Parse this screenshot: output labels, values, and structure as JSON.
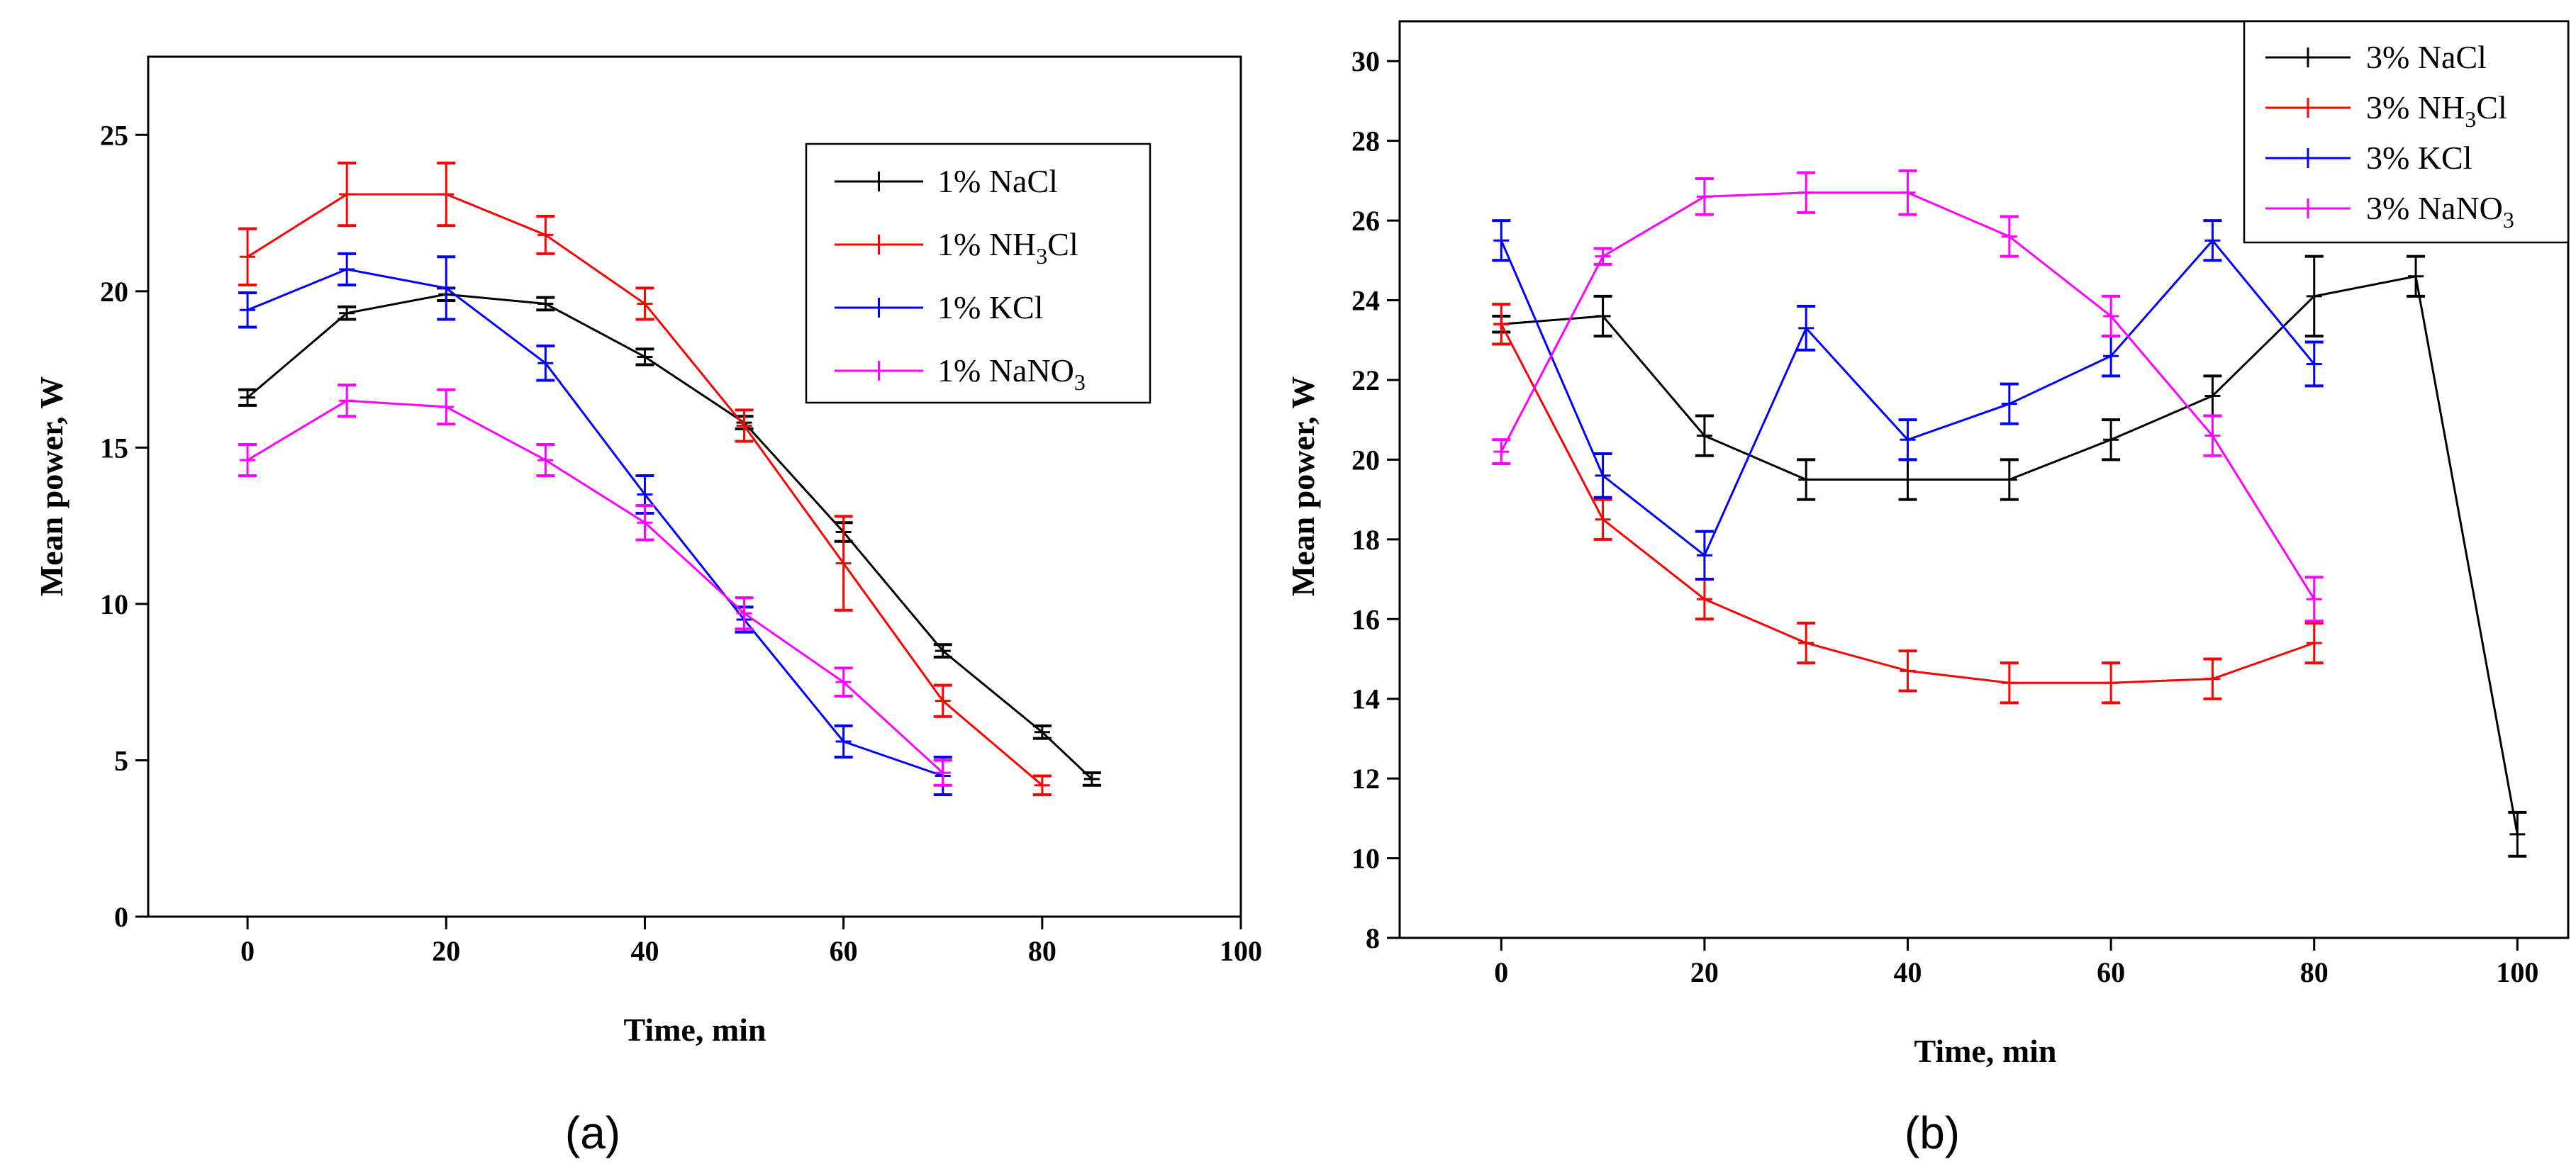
{
  "chart_data": [
    {
      "type": "line",
      "panel_label": "(a)",
      "xlabel": "Time, min",
      "ylabel": "Mean power, W",
      "xlim": [
        -10,
        100
      ],
      "ylim": [
        0,
        27.5
      ],
      "xticks": [
        0,
        20,
        40,
        60,
        80,
        100
      ],
      "yticks": [
        0,
        5,
        10,
        15,
        20,
        25
      ],
      "legend_position": "top-right",
      "series": [
        {
          "name": "1% NaCl",
          "label_main": "1% NaCl",
          "label_sub": "",
          "label_tail": "",
          "color": "#000000",
          "x": [
            0,
            10,
            20,
            30,
            40,
            50,
            60,
            70,
            80,
            85
          ],
          "y": [
            16.6,
            19.3,
            19.9,
            19.6,
            17.9,
            15.8,
            12.3,
            8.5,
            5.9,
            4.4
          ],
          "err": [
            0.25,
            0.2,
            0.2,
            0.2,
            0.25,
            0.2,
            0.3,
            0.2,
            0.2,
            0.2
          ]
        },
        {
          "name": "1% NH3Cl",
          "label_main": "1% NH",
          "label_sub": "3",
          "label_tail": "Cl",
          "color": "#ff0000",
          "x": [
            0,
            10,
            20,
            30,
            40,
            50,
            60,
            70,
            80
          ],
          "y": [
            21.1,
            23.1,
            23.1,
            21.8,
            19.6,
            15.7,
            11.3,
            6.9,
            4.2
          ],
          "err": [
            0.9,
            1.0,
            1.0,
            0.6,
            0.5,
            0.5,
            1.5,
            0.5,
            0.3
          ]
        },
        {
          "name": "1% KCl",
          "label_main": "1% KCl",
          "label_sub": "",
          "label_tail": "",
          "color": "#0000ff",
          "x": [
            0,
            10,
            20,
            30,
            40,
            50,
            60,
            70
          ],
          "y": [
            19.4,
            20.7,
            20.1,
            17.7,
            13.5,
            9.5,
            5.6,
            4.5
          ],
          "err": [
            0.55,
            0.5,
            1.0,
            0.55,
            0.6,
            0.4,
            0.5,
            0.6
          ]
        },
        {
          "name": "1% NaNO3",
          "label_main": "1% NaNO",
          "label_sub": "3",
          "label_tail": "",
          "color": "#ff00ff",
          "x": [
            0,
            10,
            20,
            30,
            40,
            50,
            60,
            70
          ],
          "y": [
            14.6,
            16.5,
            16.3,
            14.6,
            12.6,
            9.7,
            7.5,
            4.6
          ],
          "err": [
            0.5,
            0.5,
            0.55,
            0.5,
            0.55,
            0.5,
            0.45,
            0.4
          ]
        }
      ]
    },
    {
      "type": "line",
      "panel_label": "(b)",
      "xlabel": "Time, min",
      "ylabel": "Mean power, W",
      "xlim": [
        -10,
        105
      ],
      "ylim": [
        8,
        31
      ],
      "xticks": [
        0,
        20,
        40,
        60,
        80,
        100
      ],
      "yticks": [
        8,
        10,
        12,
        14,
        16,
        18,
        20,
        22,
        24,
        26,
        28,
        30
      ],
      "legend_position": "top-right",
      "series": [
        {
          "name": "3% NaCl",
          "label_main": "3% NaCl",
          "label_sub": "",
          "label_tail": "",
          "color": "#000000",
          "x": [
            0,
            10,
            20,
            30,
            40,
            50,
            60,
            70,
            80,
            90,
            100
          ],
          "y": [
            23.4,
            23.6,
            20.6,
            19.5,
            19.5,
            19.5,
            20.5,
            21.6,
            24.1,
            24.6,
            10.6
          ],
          "err": [
            0.2,
            0.5,
            0.5,
            0.5,
            0.5,
            0.5,
            0.5,
            0.5,
            1.0,
            0.5,
            0.55
          ]
        },
        {
          "name": "3% NH3Cl",
          "label_main": "3% NH",
          "label_sub": "3",
          "label_tail": "Cl",
          "color": "#ff0000",
          "x": [
            0,
            10,
            20,
            30,
            40,
            50,
            60,
            70,
            80
          ],
          "y": [
            23.4,
            18.5,
            16.5,
            15.4,
            14.7,
            14.4,
            14.4,
            14.5,
            15.4
          ],
          "err": [
            0.5,
            0.5,
            0.5,
            0.5,
            0.5,
            0.5,
            0.5,
            0.5,
            0.5
          ]
        },
        {
          "name": "3% KCl",
          "label_main": "3% KCl",
          "label_sub": "",
          "label_tail": "",
          "color": "#0000ff",
          "x": [
            0,
            10,
            20,
            30,
            40,
            50,
            60,
            70,
            80
          ],
          "y": [
            25.5,
            19.6,
            17.6,
            23.3,
            20.5,
            21.4,
            22.6,
            25.5,
            22.4
          ],
          "err": [
            0.5,
            0.55,
            0.6,
            0.55,
            0.5,
            0.5,
            0.5,
            0.5,
            0.55
          ]
        },
        {
          "name": "3% NaNO3",
          "label_main": "3% NaNO",
          "label_sub": "3",
          "label_tail": "",
          "color": "#ff00ff",
          "x": [
            0,
            10,
            20,
            30,
            40,
            50,
            60,
            70,
            80
          ],
          "y": [
            20.2,
            25.1,
            26.6,
            26.7,
            26.7,
            25.6,
            23.6,
            20.6,
            16.5
          ],
          "err": [
            0.3,
            0.2,
            0.45,
            0.5,
            0.55,
            0.5,
            0.5,
            0.5,
            0.55
          ]
        }
      ]
    }
  ]
}
